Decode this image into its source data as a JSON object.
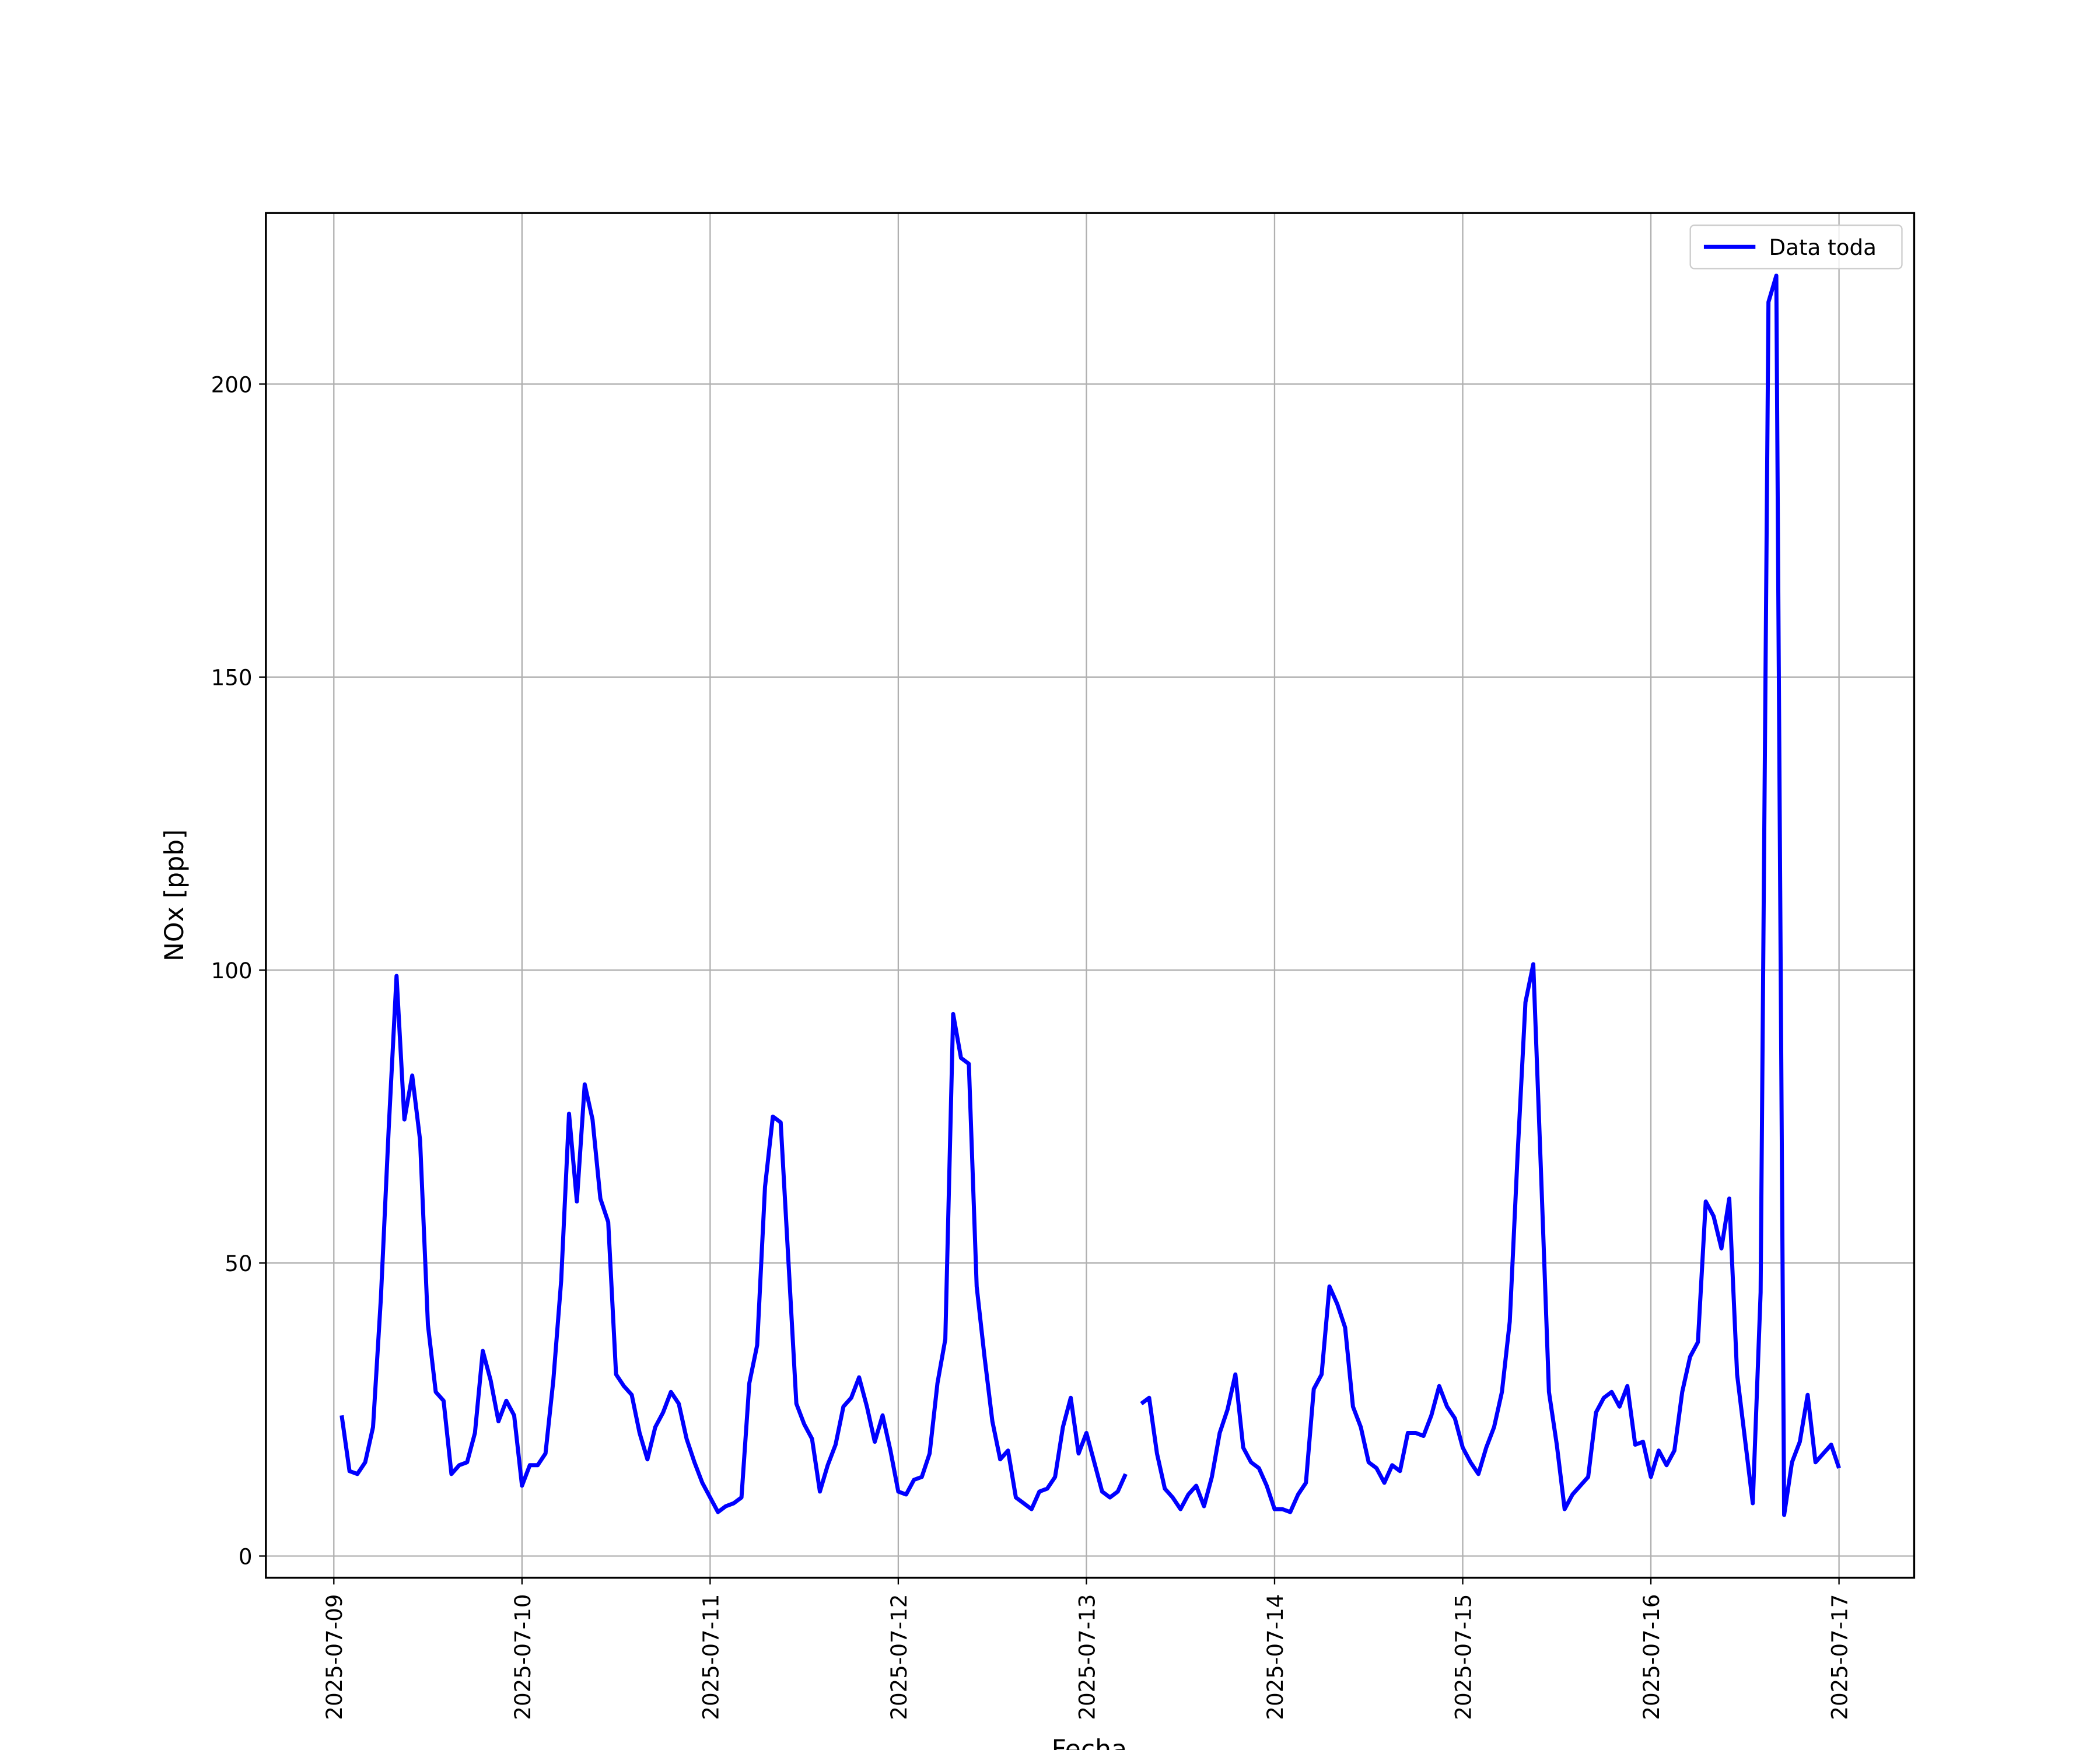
{
  "chart_data": {
    "type": "line",
    "xlabel": "Fecha",
    "ylabel": "NOx [ppb]",
    "x": [
      "2025-07-09 01:00",
      "2025-07-09 02:00",
      "2025-07-09 03:00",
      "2025-07-09 04:00",
      "2025-07-09 05:00",
      "2025-07-09 06:00",
      "2025-07-09 07:00",
      "2025-07-09 08:00",
      "2025-07-09 09:00",
      "2025-07-09 10:00",
      "2025-07-09 11:00",
      "2025-07-09 12:00",
      "2025-07-09 13:00",
      "2025-07-09 14:00",
      "2025-07-09 15:00",
      "2025-07-09 16:00",
      "2025-07-09 17:00",
      "2025-07-09 18:00",
      "2025-07-09 19:00",
      "2025-07-09 20:00",
      "2025-07-09 21:00",
      "2025-07-09 22:00",
      "2025-07-09 23:00",
      "2025-07-10 00:00",
      "2025-07-10 01:00",
      "2025-07-10 02:00",
      "2025-07-10 03:00",
      "2025-07-10 04:00",
      "2025-07-10 05:00",
      "2025-07-10 06:00",
      "2025-07-10 07:00",
      "2025-07-10 08:00",
      "2025-07-10 09:00",
      "2025-07-10 10:00",
      "2025-07-10 11:00",
      "2025-07-10 12:00",
      "2025-07-10 13:00",
      "2025-07-10 14:00",
      "2025-07-10 15:00",
      "2025-07-10 16:00",
      "2025-07-10 17:00",
      "2025-07-10 18:00",
      "2025-07-10 19:00",
      "2025-07-10 20:00",
      "2025-07-10 21:00",
      "2025-07-10 22:00",
      "2025-07-10 23:00",
      "2025-07-11 00:00",
      "2025-07-11 01:00",
      "2025-07-11 02:00",
      "2025-07-11 03:00",
      "2025-07-11 04:00",
      "2025-07-11 05:00",
      "2025-07-11 06:00",
      "2025-07-11 07:00",
      "2025-07-11 08:00",
      "2025-07-11 09:00",
      "2025-07-11 10:00",
      "2025-07-11 11:00",
      "2025-07-11 12:00",
      "2025-07-11 13:00",
      "2025-07-11 14:00",
      "2025-07-11 15:00",
      "2025-07-11 16:00",
      "2025-07-11 17:00",
      "2025-07-11 18:00",
      "2025-07-11 19:00",
      "2025-07-11 20:00",
      "2025-07-11 21:00",
      "2025-07-11 22:00",
      "2025-07-11 23:00",
      "2025-07-12 00:00",
      "2025-07-12 01:00",
      "2025-07-12 02:00",
      "2025-07-12 03:00",
      "2025-07-12 04:00",
      "2025-07-12 05:00",
      "2025-07-12 06:00",
      "2025-07-12 07:00",
      "2025-07-12 08:00",
      "2025-07-12 09:00",
      "2025-07-12 10:00",
      "2025-07-12 11:00",
      "2025-07-12 12:00",
      "2025-07-12 13:00",
      "2025-07-12 14:00",
      "2025-07-12 15:00",
      "2025-07-12 16:00",
      "2025-07-12 17:00",
      "2025-07-12 18:00",
      "2025-07-12 19:00",
      "2025-07-12 20:00",
      "2025-07-12 21:00",
      "2025-07-12 22:00",
      "2025-07-12 23:00",
      "2025-07-13 00:00",
      "2025-07-13 01:00",
      "2025-07-13 02:00",
      "2025-07-13 03:00",
      "2025-07-13 04:00",
      "2025-07-13 05:00",
      "2025-07-13 06:00",
      "2025-07-13 07:00",
      "2025-07-13 08:00",
      "2025-07-13 09:00",
      "2025-07-13 10:00",
      "2025-07-13 11:00",
      "2025-07-13 12:00",
      "2025-07-13 13:00",
      "2025-07-13 14:00",
      "2025-07-13 15:00",
      "2025-07-13 16:00",
      "2025-07-13 17:00",
      "2025-07-13 18:00",
      "2025-07-13 19:00",
      "2025-07-13 20:00",
      "2025-07-13 21:00",
      "2025-07-13 22:00",
      "2025-07-13 23:00",
      "2025-07-14 00:00",
      "2025-07-14 01:00",
      "2025-07-14 02:00",
      "2025-07-14 03:00",
      "2025-07-14 04:00",
      "2025-07-14 05:00",
      "2025-07-14 06:00",
      "2025-07-14 07:00",
      "2025-07-14 08:00",
      "2025-07-14 09:00",
      "2025-07-14 10:00",
      "2025-07-14 11:00",
      "2025-07-14 12:00",
      "2025-07-14 13:00",
      "2025-07-14 14:00",
      "2025-07-14 15:00",
      "2025-07-14 16:00",
      "2025-07-14 17:00",
      "2025-07-14 18:00",
      "2025-07-14 19:00",
      "2025-07-14 20:00",
      "2025-07-14 21:00",
      "2025-07-14 22:00",
      "2025-07-14 23:00",
      "2025-07-15 00:00",
      "2025-07-15 01:00",
      "2025-07-15 02:00",
      "2025-07-15 03:00",
      "2025-07-15 04:00",
      "2025-07-15 05:00",
      "2025-07-15 06:00",
      "2025-07-15 07:00",
      "2025-07-15 08:00",
      "2025-07-15 09:00",
      "2025-07-15 10:00",
      "2025-07-15 11:00",
      "2025-07-15 12:00",
      "2025-07-15 13:00",
      "2025-07-15 14:00",
      "2025-07-15 15:00",
      "2025-07-15 16:00",
      "2025-07-15 17:00",
      "2025-07-15 18:00",
      "2025-07-15 19:00",
      "2025-07-15 20:00",
      "2025-07-15 21:00",
      "2025-07-15 22:00",
      "2025-07-15 23:00",
      "2025-07-16 00:00",
      "2025-07-16 01:00",
      "2025-07-16 02:00",
      "2025-07-16 03:00",
      "2025-07-16 04:00",
      "2025-07-16 05:00",
      "2025-07-16 06:00",
      "2025-07-16 07:00",
      "2025-07-16 08:00",
      "2025-07-16 09:00",
      "2025-07-16 10:00",
      "2025-07-16 11:00",
      "2025-07-16 12:00",
      "2025-07-16 13:00",
      "2025-07-16 14:00",
      "2025-07-16 15:00",
      "2025-07-16 16:00",
      "2025-07-16 17:00",
      "2025-07-16 18:00",
      "2025-07-16 19:00",
      "2025-07-16 20:00",
      "2025-07-16 21:00",
      "2025-07-16 22:00",
      "2025-07-16 23:00",
      "2025-07-17 00:00"
    ],
    "series": [
      {
        "name": "Data toda",
        "color": "#0000ff",
        "values": [
          24,
          14.5,
          14,
          16,
          22,
          44,
          73,
          99,
          74.5,
          82,
          71,
          39.5,
          28,
          26.5,
          14,
          15.5,
          16,
          21,
          35,
          30,
          23,
          26.5,
          24,
          12,
          15.5,
          15.5,
          17.5,
          30,
          47,
          75.5,
          60.5,
          80.5,
          74.5,
          61,
          57,
          31,
          29,
          27.5,
          21,
          16.5,
          22,
          24.5,
          28,
          26,
          20,
          16,
          12.5,
          10,
          7.5,
          8.5,
          9,
          10,
          29.5,
          36,
          63,
          75,
          74,
          50,
          26,
          22.5,
          20,
          11,
          15.5,
          19,
          25.5,
          27,
          30.5,
          25.5,
          19.5,
          24,
          18,
          11,
          10.5,
          13,
          13.5,
          17.5,
          29.5,
          37,
          92.5,
          85,
          84,
          46,
          34,
          23,
          16.5,
          18,
          10,
          9,
          8,
          11,
          11.5,
          13.5,
          22,
          27,
          17.5,
          21,
          16,
          11,
          10,
          11,
          14,
          null,
          26,
          27,
          17.5,
          11.5,
          10,
          8,
          10.5,
          12,
          8.5,
          13.5,
          21,
          25,
          31,
          18.5,
          16,
          15,
          12,
          8,
          8,
          7.5,
          10.5,
          12.5,
          28.5,
          31,
          46,
          43,
          39,
          25.5,
          22,
          16,
          15,
          12.5,
          15.5,
          14.5,
          21,
          21,
          20.5,
          24,
          29,
          25.5,
          23.5,
          18.5,
          16,
          14,
          18.5,
          22,
          28,
          40,
          68.5,
          94.5,
          101,
          65,
          28,
          19,
          8,
          10.5,
          12,
          13.5,
          24.5,
          27,
          28,
          25.5,
          29,
          19,
          19.5,
          13.5,
          18,
          15.5,
          18,
          28,
          34,
          36.5,
          60.5,
          58,
          52.5,
          61,
          31,
          20,
          9,
          45,
          214,
          218.5,
          7,
          16,
          19.5,
          27.5,
          16,
          17.5,
          19,
          15
        ]
      }
    ],
    "xlim": [
      "2025-07-08 15:20",
      "2025-07-17 09:35"
    ],
    "xticks": [
      "2025-07-09",
      "2025-07-10",
      "2025-07-11",
      "2025-07-12",
      "2025-07-13",
      "2025-07-14",
      "2025-07-15",
      "2025-07-16",
      "2025-07-17"
    ],
    "ylim": [
      -3.7,
      229.2
    ],
    "yticks": [
      0,
      50,
      100,
      150,
      200
    ],
    "grid": true,
    "legend": "upper right"
  }
}
